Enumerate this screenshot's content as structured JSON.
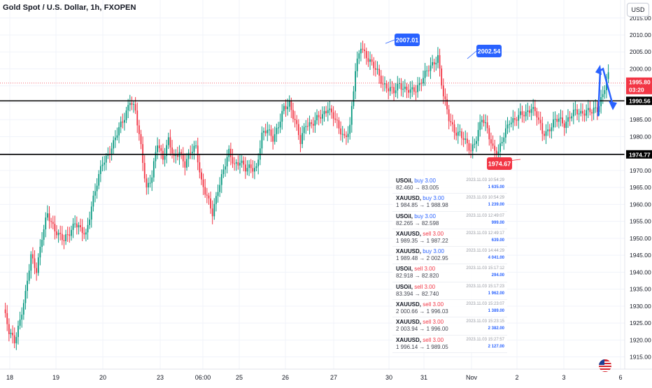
{
  "header": {
    "title": "Gold Spot / U.S. Dollar, 1h, FXOPEN",
    "currency": "USD"
  },
  "price_axis": {
    "labels": [
      "2015.00",
      "2010.00",
      "2005.00",
      "2000.00",
      "1995.00",
      "1990.00",
      "1985.00",
      "1980.00",
      "1975.00",
      "1970.00",
      "1965.00",
      "1960.00",
      "1955.00",
      "1950.00",
      "1945.00",
      "1940.00",
      "1935.00",
      "1930.00",
      "1925.00",
      "1920.00",
      "1915.00"
    ],
    "current_price": "1995.80",
    "countdown": "03:20",
    "level_1990": "1990.56",
    "level_1974": "1974.77"
  },
  "time_axis": {
    "labels": [
      "18",
      "19",
      "20",
      "23",
      "06:00",
      "25",
      "26",
      "27",
      "30",
      "31",
      "Nov",
      "2",
      "3",
      "6"
    ]
  },
  "callouts": {
    "high_1": "2007.01",
    "high_2": "2002.54",
    "low_1": "1974.67"
  },
  "trades": [
    {
      "symbol": "USOil",
      "side": "buy 3.00",
      "side_type": "buy",
      "prices": "82.460 → 83.005",
      "time": "2023.11.03 10:54:29",
      "amount": "1 635.00"
    },
    {
      "symbol": "XAUUSD",
      "side": "buy 3.00",
      "side_type": "buy",
      "prices": "1 984.85 → 1 988.98",
      "time": "2023.11.03 10:54:29",
      "amount": "1 239.00"
    },
    {
      "symbol": "USOil",
      "side": "buy 3.00",
      "side_type": "buy",
      "prices": "82.265 → 82.598",
      "time": "2023.11.03 12:49:07",
      "amount": "999.00"
    },
    {
      "symbol": "XAUUSD",
      "side": "sell 3.00",
      "side_type": "sell",
      "prices": "1 989.35 → 1 987.22",
      "time": "2023.11.03 12:49:17",
      "amount": "639.00"
    },
    {
      "symbol": "XAUUSD",
      "side": "buy 3.00",
      "side_type": "buy",
      "prices": "1 989.48 → 2 002.95",
      "time": "2023.11.03 14:44:29",
      "amount": "4 041.00"
    },
    {
      "symbol": "USOil",
      "side": "sell 3.00",
      "side_type": "sell",
      "prices": "82.918 → 82.820",
      "time": "2023.11.03 15:17:12",
      "amount": "294.00"
    },
    {
      "symbol": "USOil",
      "side": "sell 3.00",
      "side_type": "sell",
      "prices": "83.394 → 82.740",
      "time": "2023.11.03 15:17:23",
      "amount": "1 962.00"
    },
    {
      "symbol": "XAUUSD",
      "side": "sell 3.00",
      "side_type": "sell",
      "prices": "2 000.66 → 1 996.03",
      "time": "2023.11.03 15:23:07",
      "amount": "1 389.00"
    },
    {
      "symbol": "XAUUSD",
      "side": "sell 3.00",
      "side_type": "sell",
      "prices": "2 003.94 → 1 996.00",
      "time": "2023.11.03 15:23:15",
      "amount": "2 382.00"
    },
    {
      "symbol": "XAUUSD",
      "side": "sell 3.00",
      "side_type": "sell",
      "prices": "1 996.14 → 1 989.05",
      "time": "2023.11.03 15:27:57",
      "amount": "2 127.00"
    }
  ],
  "colors": {
    "up": "#089981",
    "down": "#f23645",
    "accent": "#2962ff",
    "level": "#000000",
    "price_tag": "#f23645"
  },
  "chart_data": {
    "type": "candlestick",
    "ylim": [
      1913,
      2018
    ],
    "grid": true,
    "horizontal_levels": [
      1990.56,
      1974.77
    ],
    "anchors": [
      [
        0,
        1929
      ],
      [
        3,
        1922
      ],
      [
        6,
        1920
      ],
      [
        9,
        1926
      ],
      [
        12,
        1933
      ],
      [
        15,
        1945
      ],
      [
        18,
        1941
      ],
      [
        21,
        1950
      ],
      [
        24,
        1957
      ],
      [
        27,
        1954
      ],
      [
        30,
        1951
      ],
      [
        33,
        1949
      ],
      [
        36,
        1952
      ],
      [
        39,
        1955
      ],
      [
        42,
        1952
      ],
      [
        45,
        1951
      ],
      [
        48,
        1960
      ],
      [
        51,
        1966
      ],
      [
        54,
        1972
      ],
      [
        57,
        1975
      ],
      [
        60,
        1978
      ],
      [
        63,
        1982
      ],
      [
        66,
        1986
      ],
      [
        69,
        1991
      ],
      [
        72,
        1987
      ],
      [
        75,
        1977
      ],
      [
        78,
        1965
      ],
      [
        81,
        1968
      ],
      [
        84,
        1978
      ],
      [
        87,
        1974
      ],
      [
        90,
        1979
      ],
      [
        93,
        1973
      ],
      [
        96,
        1976
      ],
      [
        99,
        1972
      ],
      [
        102,
        1975
      ],
      [
        105,
        1977
      ],
      [
        108,
        1967
      ],
      [
        111,
        1962
      ],
      [
        114,
        1957
      ],
      [
        117,
        1965
      ],
      [
        120,
        1970
      ],
      [
        123,
        1975
      ],
      [
        126,
        1972
      ],
      [
        129,
        1973
      ],
      [
        132,
        1970
      ],
      [
        135,
        1971
      ],
      [
        138,
        1971
      ],
      [
        141,
        1980
      ],
      [
        144,
        1982
      ],
      [
        147,
        1980
      ],
      [
        150,
        1983
      ],
      [
        153,
        1988
      ],
      [
        156,
        1990
      ],
      [
        159,
        1985
      ],
      [
        162,
        1978
      ],
      [
        165,
        1984
      ],
      [
        168,
        1984
      ],
      [
        171,
        1985
      ],
      [
        174,
        1986
      ],
      [
        177,
        1989
      ],
      [
        180,
        1986
      ],
      [
        183,
        1982
      ],
      [
        186,
        1980
      ],
      [
        189,
        1983
      ],
      [
        192,
        1999
      ],
      [
        195,
        2007
      ],
      [
        198,
        2004
      ],
      [
        201,
        2001
      ],
      [
        204,
        1999
      ],
      [
        207,
        1996
      ],
      [
        210,
        1994
      ],
      [
        213,
        1993
      ],
      [
        216,
        1996
      ],
      [
        219,
        1994
      ],
      [
        222,
        1993
      ],
      [
        225,
        1994
      ],
      [
        228,
        1997
      ],
      [
        231,
        1999
      ],
      [
        234,
        2001
      ],
      [
        237,
        2004
      ],
      [
        240,
        1992
      ],
      [
        243,
        1985
      ],
      [
        246,
        1982
      ],
      [
        249,
        1981
      ],
      [
        252,
        1978
      ],
      [
        255,
        1976
      ],
      [
        258,
        1980
      ],
      [
        261,
        1985
      ],
      [
        264,
        1982
      ],
      [
        267,
        1977
      ],
      [
        270,
        1975
      ],
      [
        273,
        1980
      ],
      [
        276,
        1985
      ],
      [
        279,
        1985
      ],
      [
        282,
        1986
      ],
      [
        285,
        1987
      ],
      [
        288,
        1989
      ],
      [
        291,
        1986
      ],
      [
        294,
        1981
      ],
      [
        297,
        1982
      ],
      [
        300,
        1984
      ],
      [
        303,
        1985
      ],
      [
        306,
        1984
      ],
      [
        309,
        1986
      ],
      [
        312,
        1987
      ],
      [
        315,
        1987
      ],
      [
        318,
        1988
      ],
      [
        321,
        1987
      ],
      [
        324,
        1988
      ],
      [
        327,
        1993
      ],
      [
        330,
        1999
      ]
    ]
  }
}
